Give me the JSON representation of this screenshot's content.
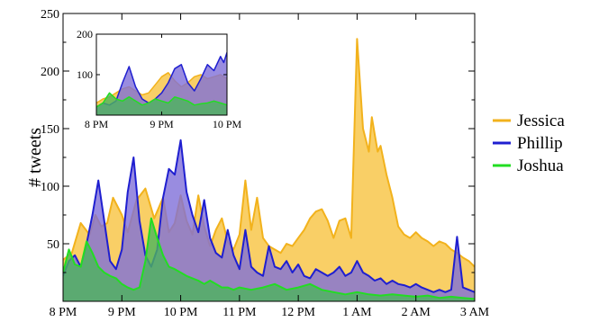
{
  "chart_data": [
    {
      "type": "area",
      "title": "",
      "xlabel": "",
      "ylabel": "# tweets",
      "x_unit": "hours since 8 PM",
      "xlim": [
        0,
        7
      ],
      "ylim": [
        0,
        250
      ],
      "xticks": [
        0,
        1,
        2,
        3,
        4,
        5,
        6,
        7
      ],
      "xtick_labels": [
        "8 PM",
        "9 PM",
        "10 PM",
        "11 PM",
        "12 PM",
        "1 AM",
        "2 AM",
        "3 AM"
      ],
      "yticks": [
        50,
        100,
        150,
        200,
        250
      ],
      "ytick_labels": [
        "50",
        "100",
        "150",
        "200",
        "250"
      ],
      "grid": false,
      "legend_position": "right",
      "series": [
        {
          "name": "Jessica",
          "color": "#f2b21c",
          "fill": "#f9cf66",
          "x": [
            0,
            0.15,
            0.3,
            0.45,
            0.55,
            0.65,
            0.75,
            0.85,
            1.0,
            1.1,
            1.25,
            1.4,
            1.55,
            1.7,
            1.8,
            1.9,
            2.0,
            2.1,
            2.2,
            2.3,
            2.4,
            2.5,
            2.6,
            2.7,
            2.8,
            2.9,
            3.0,
            3.1,
            3.2,
            3.3,
            3.4,
            3.5,
            3.6,
            3.7,
            3.8,
            3.9,
            4.0,
            4.1,
            4.2,
            4.3,
            4.4,
            4.5,
            4.6,
            4.7,
            4.8,
            4.9,
            5.0,
            5.1,
            5.2,
            5.25,
            5.3,
            5.35,
            5.4,
            5.5,
            5.6,
            5.7,
            5.8,
            5.9,
            6.0,
            6.1,
            6.2,
            6.3,
            6.4,
            6.5,
            6.6,
            6.7,
            6.8,
            6.9,
            7.0
          ],
          "y": [
            36,
            42,
            68,
            58,
            75,
            65,
            68,
            90,
            75,
            60,
            88,
            98,
            72,
            90,
            60,
            68,
            92,
            70,
            58,
            92,
            65,
            48,
            62,
            72,
            52,
            45,
            58,
            105,
            62,
            90,
            55,
            48,
            45,
            42,
            50,
            48,
            55,
            62,
            72,
            78,
            80,
            70,
            55,
            70,
            72,
            55,
            228,
            150,
            130,
            160,
            145,
            130,
            135,
            110,
            90,
            65,
            58,
            55,
            60,
            55,
            52,
            48,
            52,
            50,
            45,
            42,
            38,
            35,
            30
          ]
        },
        {
          "name": "Phillip",
          "color": "#1f1fd0",
          "fill": "#7f6fd8",
          "x": [
            0,
            0.1,
            0.2,
            0.3,
            0.4,
            0.5,
            0.6,
            0.7,
            0.8,
            0.9,
            1.0,
            1.1,
            1.2,
            1.3,
            1.4,
            1.5,
            1.6,
            1.7,
            1.8,
            1.9,
            2.0,
            2.1,
            2.2,
            2.3,
            2.4,
            2.5,
            2.6,
            2.7,
            2.8,
            2.9,
            3.0,
            3.1,
            3.2,
            3.3,
            3.4,
            3.5,
            3.6,
            3.7,
            3.8,
            3.9,
            4.0,
            4.1,
            4.2,
            4.3,
            4.4,
            4.5,
            4.6,
            4.7,
            4.8,
            4.9,
            5.0,
            5.1,
            5.2,
            5.3,
            5.4,
            5.5,
            5.6,
            5.7,
            5.8,
            5.9,
            6.0,
            6.1,
            6.2,
            6.3,
            6.4,
            6.5,
            6.6,
            6.7,
            6.8,
            6.9,
            7.0
          ],
          "y": [
            22,
            35,
            40,
            30,
            50,
            75,
            105,
            70,
            35,
            28,
            45,
            95,
            125,
            70,
            40,
            30,
            45,
            90,
            115,
            110,
            140,
            95,
            75,
            60,
            88,
            55,
            42,
            38,
            62,
            40,
            28,
            62,
            30,
            25,
            22,
            48,
            30,
            28,
            35,
            25,
            32,
            22,
            20,
            28,
            25,
            22,
            25,
            30,
            22,
            25,
            35,
            25,
            22,
            18,
            20,
            15,
            18,
            15,
            14,
            12,
            15,
            12,
            10,
            8,
            10,
            8,
            10,
            56,
            12,
            10,
            8
          ]
        },
        {
          "name": "Joshua",
          "color": "#22dd22",
          "fill": "#4cb45c",
          "x": [
            0,
            0.1,
            0.2,
            0.3,
            0.4,
            0.5,
            0.6,
            0.7,
            0.8,
            0.9,
            1.0,
            1.1,
            1.2,
            1.3,
            1.4,
            1.5,
            1.6,
            1.7,
            1.8,
            1.9,
            2.0,
            2.1,
            2.2,
            2.3,
            2.4,
            2.5,
            2.6,
            2.7,
            2.8,
            2.9,
            3.0,
            3.2,
            3.4,
            3.6,
            3.8,
            4.0,
            4.2,
            4.4,
            4.6,
            4.8,
            5.0,
            5.2,
            5.4,
            5.6,
            5.8,
            6.0,
            6.2,
            6.4,
            6.6,
            6.8,
            7.0
          ],
          "y": [
            25,
            45,
            32,
            30,
            52,
            42,
            30,
            25,
            22,
            20,
            15,
            12,
            10,
            12,
            35,
            72,
            55,
            40,
            30,
            28,
            25,
            22,
            20,
            18,
            15,
            18,
            15,
            12,
            12,
            10,
            12,
            10,
            12,
            15,
            10,
            12,
            15,
            10,
            8,
            6,
            8,
            6,
            5,
            6,
            5,
            4,
            5,
            3,
            4,
            3,
            2
          ]
        }
      ]
    },
    {
      "type": "area",
      "role": "inset",
      "title": "",
      "xlim": [
        0,
        2
      ],
      "ylim": [
        0,
        200
      ],
      "xticks": [
        0,
        1,
        2
      ],
      "xtick_labels": [
        "8 PM",
        "9 PM",
        "10 PM"
      ],
      "yticks": [
        100,
        200
      ],
      "ytick_labels": [
        "100",
        "200"
      ],
      "series": [
        {
          "name": "Jessica",
          "color": "#f2b21c",
          "fill": "#f9cf66",
          "x": [
            0,
            0.1,
            0.2,
            0.3,
            0.4,
            0.5,
            0.6,
            0.7,
            0.8,
            0.9,
            1.0,
            1.1,
            1.2,
            1.3,
            1.4,
            1.5,
            1.6,
            1.7,
            1.8,
            1.9,
            2.0
          ],
          "y": [
            30,
            40,
            45,
            55,
            65,
            70,
            60,
            50,
            55,
            75,
            95,
            105,
            85,
            70,
            80,
            95,
            100,
            90,
            95,
            100,
            90
          ]
        },
        {
          "name": "Phillip",
          "color": "#1f1fd0",
          "fill": "#7f6fd8",
          "x": [
            0,
            0.1,
            0.2,
            0.3,
            0.4,
            0.5,
            0.6,
            0.7,
            0.8,
            0.9,
            1.0,
            1.1,
            1.2,
            1.3,
            1.4,
            1.5,
            1.6,
            1.7,
            1.8,
            1.9,
            1.95,
            2.0
          ],
          "y": [
            20,
            30,
            25,
            35,
            80,
            120,
            70,
            40,
            30,
            40,
            55,
            80,
            115,
            125,
            80,
            60,
            90,
            125,
            110,
            145,
            130,
            155
          ]
        },
        {
          "name": "Joshua",
          "color": "#22dd22",
          "fill": "#4cb45c",
          "x": [
            0,
            0.1,
            0.2,
            0.3,
            0.4,
            0.5,
            0.6,
            0.7,
            0.8,
            0.9,
            1.0,
            1.1,
            1.2,
            1.3,
            1.4,
            1.5,
            1.6,
            1.7,
            1.8,
            1.9,
            2.0
          ],
          "y": [
            20,
            30,
            55,
            40,
            35,
            45,
            35,
            25,
            30,
            40,
            35,
            30,
            45,
            40,
            35,
            25,
            28,
            30,
            35,
            30,
            25
          ]
        }
      ]
    }
  ]
}
